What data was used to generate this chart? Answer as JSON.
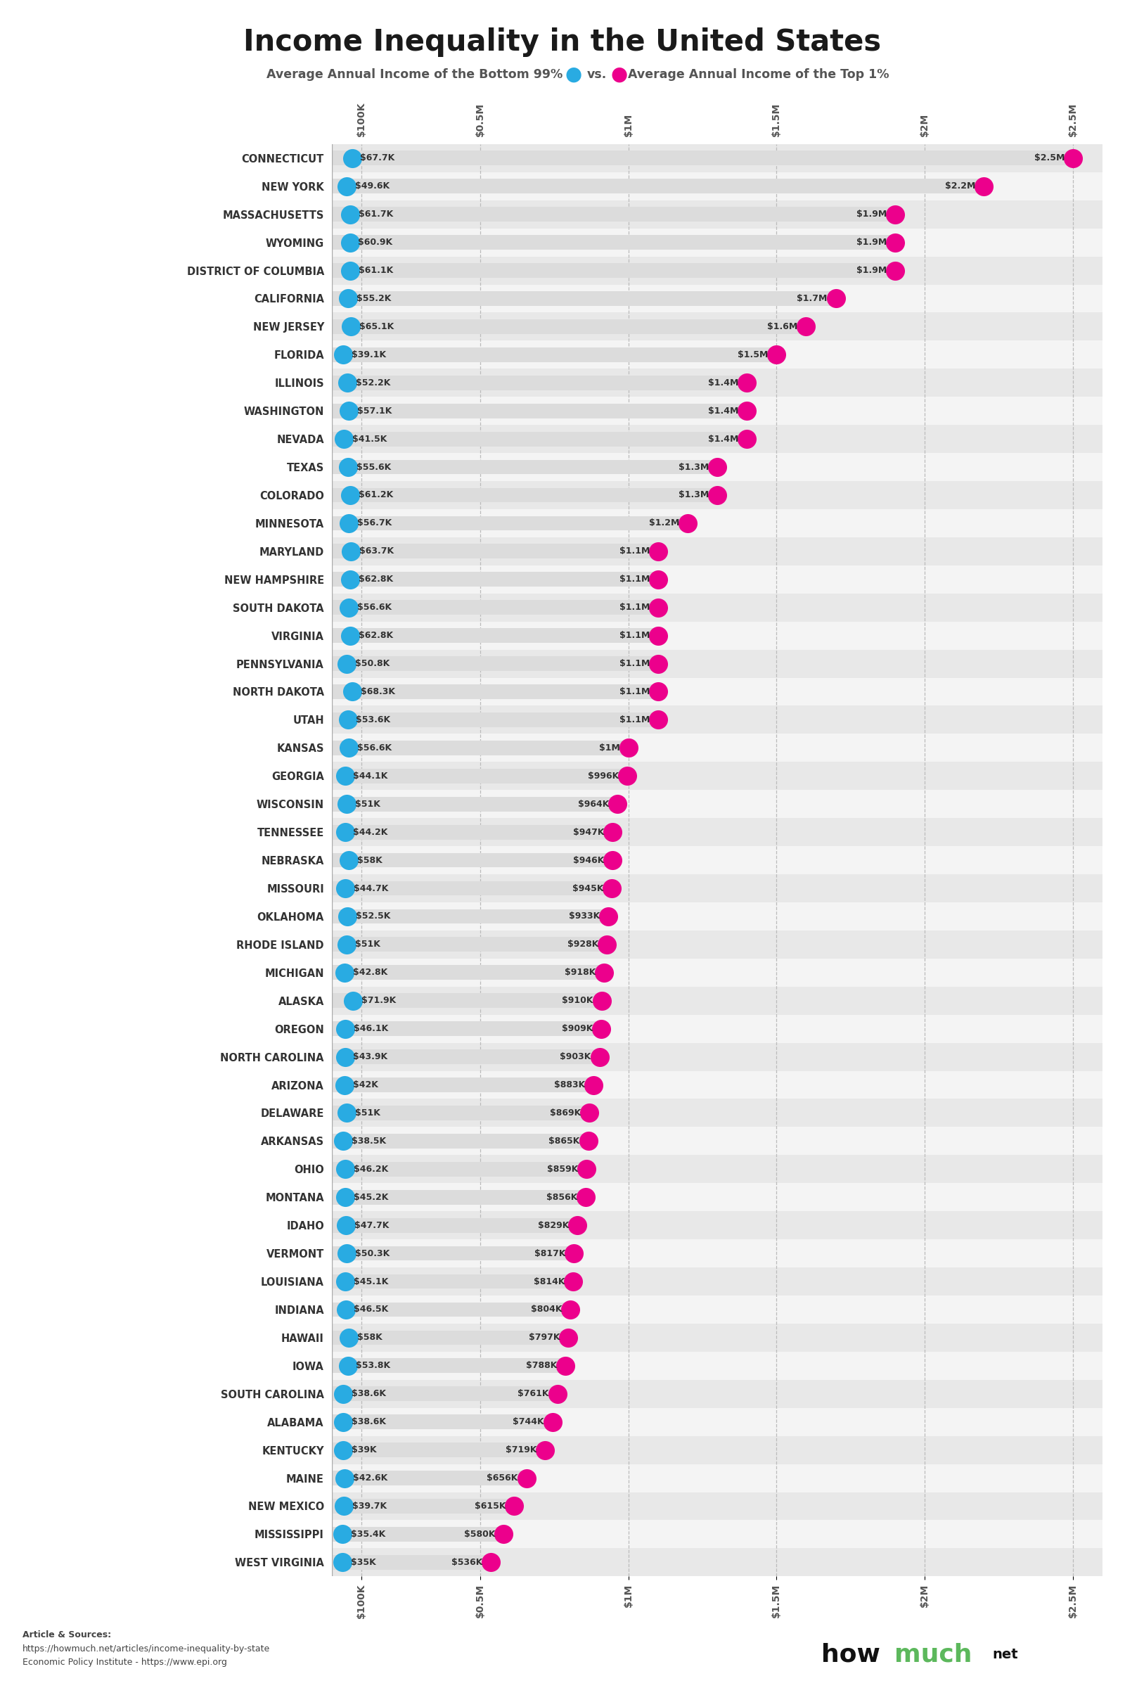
{
  "title": "Income Inequality in the United States",
  "subtitle_left": "Average Annual Income of the Bottom 99%",
  "subtitle_vs": "vs.",
  "subtitle_right": "Average Annual Income of the Top 1%",
  "color_bottom99": "#29ABE2",
  "color_top1": "#EC008C",
  "bar_color": "#DCDCDC",
  "row_color_even": "#EBEBEB",
  "row_color_odd": "#F7F7F7",
  "background_color": "#FFFFFF",
  "states": [
    "CONNECTICUT",
    "NEW YORK",
    "MASSACHUSETTS",
    "WYOMING",
    "DISTRICT OF COLUMBIA",
    "CALIFORNIA",
    "NEW JERSEY",
    "FLORIDA",
    "ILLINOIS",
    "WASHINGTON",
    "NEVADA",
    "TEXAS",
    "COLORADO",
    "MINNESOTA",
    "MARYLAND",
    "NEW HAMPSHIRE",
    "SOUTH DAKOTA",
    "VIRGINIA",
    "PENNSYLVANIA",
    "NORTH DAKOTA",
    "UTAH",
    "KANSAS",
    "GEORGIA",
    "WISCONSIN",
    "TENNESSEE",
    "NEBRASKA",
    "MISSOURI",
    "OKLAHOMA",
    "RHODE ISLAND",
    "MICHIGAN",
    "ALASKA",
    "OREGON",
    "NORTH CAROLINA",
    "ARIZONA",
    "DELAWARE",
    "ARKANSAS",
    "OHIO",
    "MONTANA",
    "IDAHO",
    "VERMONT",
    "LOUISIANA",
    "INDIANA",
    "HAWAII",
    "IOWA",
    "SOUTH CAROLINA",
    "ALABAMA",
    "KENTUCKY",
    "MAINE",
    "NEW MEXICO",
    "MISSISSIPPI",
    "WEST VIRGINIA"
  ],
  "bottom99": [
    67700,
    49600,
    61700,
    60900,
    61100,
    55200,
    65100,
    39100,
    52200,
    57100,
    41500,
    55600,
    61200,
    56700,
    63700,
    62800,
    56600,
    62800,
    50800,
    68300,
    53600,
    56600,
    44100,
    51000,
    44200,
    58000,
    44700,
    52500,
    51000,
    42800,
    71900,
    46100,
    43900,
    42000,
    51000,
    38500,
    46200,
    45200,
    47700,
    50300,
    45100,
    46500,
    58000,
    53800,
    38600,
    38600,
    39000,
    42600,
    39700,
    35400,
    35000
  ],
  "bottom99_labels": [
    "$67.7K",
    "$49.6K",
    "$61.7K",
    "$60.9K",
    "$61.1K",
    "$55.2K",
    "$65.1K",
    "$39.1K",
    "$52.2K",
    "$57.1K",
    "$41.5K",
    "$55.6K",
    "$61.2K",
    "$56.7K",
    "$63.7K",
    "$62.8K",
    "$56.6K",
    "$62.8K",
    "$50.8K",
    "$68.3K",
    "$53.6K",
    "$56.6K",
    "$44.1K",
    "$51K",
    "$44.2K",
    "$58K",
    "$44.7K",
    "$52.5K",
    "$51K",
    "$42.8K",
    "$71.9K",
    "$46.1K",
    "$43.9K",
    "$42K",
    "$51K",
    "$38.5K",
    "$46.2K",
    "$45.2K",
    "$47.7K",
    "$50.3K",
    "$45.1K",
    "$46.5K",
    "$58K",
    "$53.8K",
    "$38.6K",
    "$38.6K",
    "$39K",
    "$42.6K",
    "$39.7K",
    "$35.4K",
    "$35K"
  ],
  "top1": [
    2500000,
    2200000,
    1900000,
    1900000,
    1900000,
    1700000,
    1600000,
    1500000,
    1400000,
    1400000,
    1400000,
    1300000,
    1300000,
    1200000,
    1100000,
    1100000,
    1100000,
    1100000,
    1100000,
    1100000,
    1100000,
    1000000,
    996000,
    964000,
    947000,
    946000,
    945000,
    933000,
    928000,
    918000,
    910000,
    909000,
    903000,
    883000,
    869000,
    865000,
    859000,
    856000,
    829000,
    817000,
    814000,
    804000,
    797000,
    788000,
    761000,
    744000,
    719000,
    656000,
    615000,
    580000,
    536000
  ],
  "top1_labels": [
    "$2.5M",
    "$2.2M",
    "$1.9M",
    "$1.9M",
    "$1.9M",
    "$1.7M",
    "$1.6M",
    "$1.5M",
    "$1.4M",
    "$1.4M",
    "$1.4M",
    "$1.3M",
    "$1.3M",
    "$1.2M",
    "$1.1M",
    "$1.1M",
    "$1.1M",
    "$1.1M",
    "$1.1M",
    "$1.1M",
    "$1.1M",
    "$1M",
    "$996K",
    "$964K",
    "$947K",
    "$946K",
    "$945K",
    "$933K",
    "$928K",
    "$918K",
    "$910K",
    "$909K",
    "$903K",
    "$883K",
    "$869K",
    "$865K",
    "$859K",
    "$856K",
    "$829K",
    "$817K",
    "$814K",
    "$804K",
    "$797K",
    "$788K",
    "$761K",
    "$744K",
    "$719K",
    "$656K",
    "$615K",
    "$580K",
    "$536K"
  ],
  "xmax": 2600000,
  "xticks": [
    100000,
    500000,
    1000000,
    1500000,
    2000000,
    2500000
  ],
  "xtick_labels": [
    "$100K",
    "$0.5M",
    "$1M",
    "$1.5M",
    "$2M",
    "$2.5M"
  ],
  "article_sources_line1": "Article & Sources:",
  "article_sources_line2": "https://howmuch.net/articles/income-inequality-by-state",
  "article_sources_line3": "Economic Policy Institute - https://www.epi.org"
}
